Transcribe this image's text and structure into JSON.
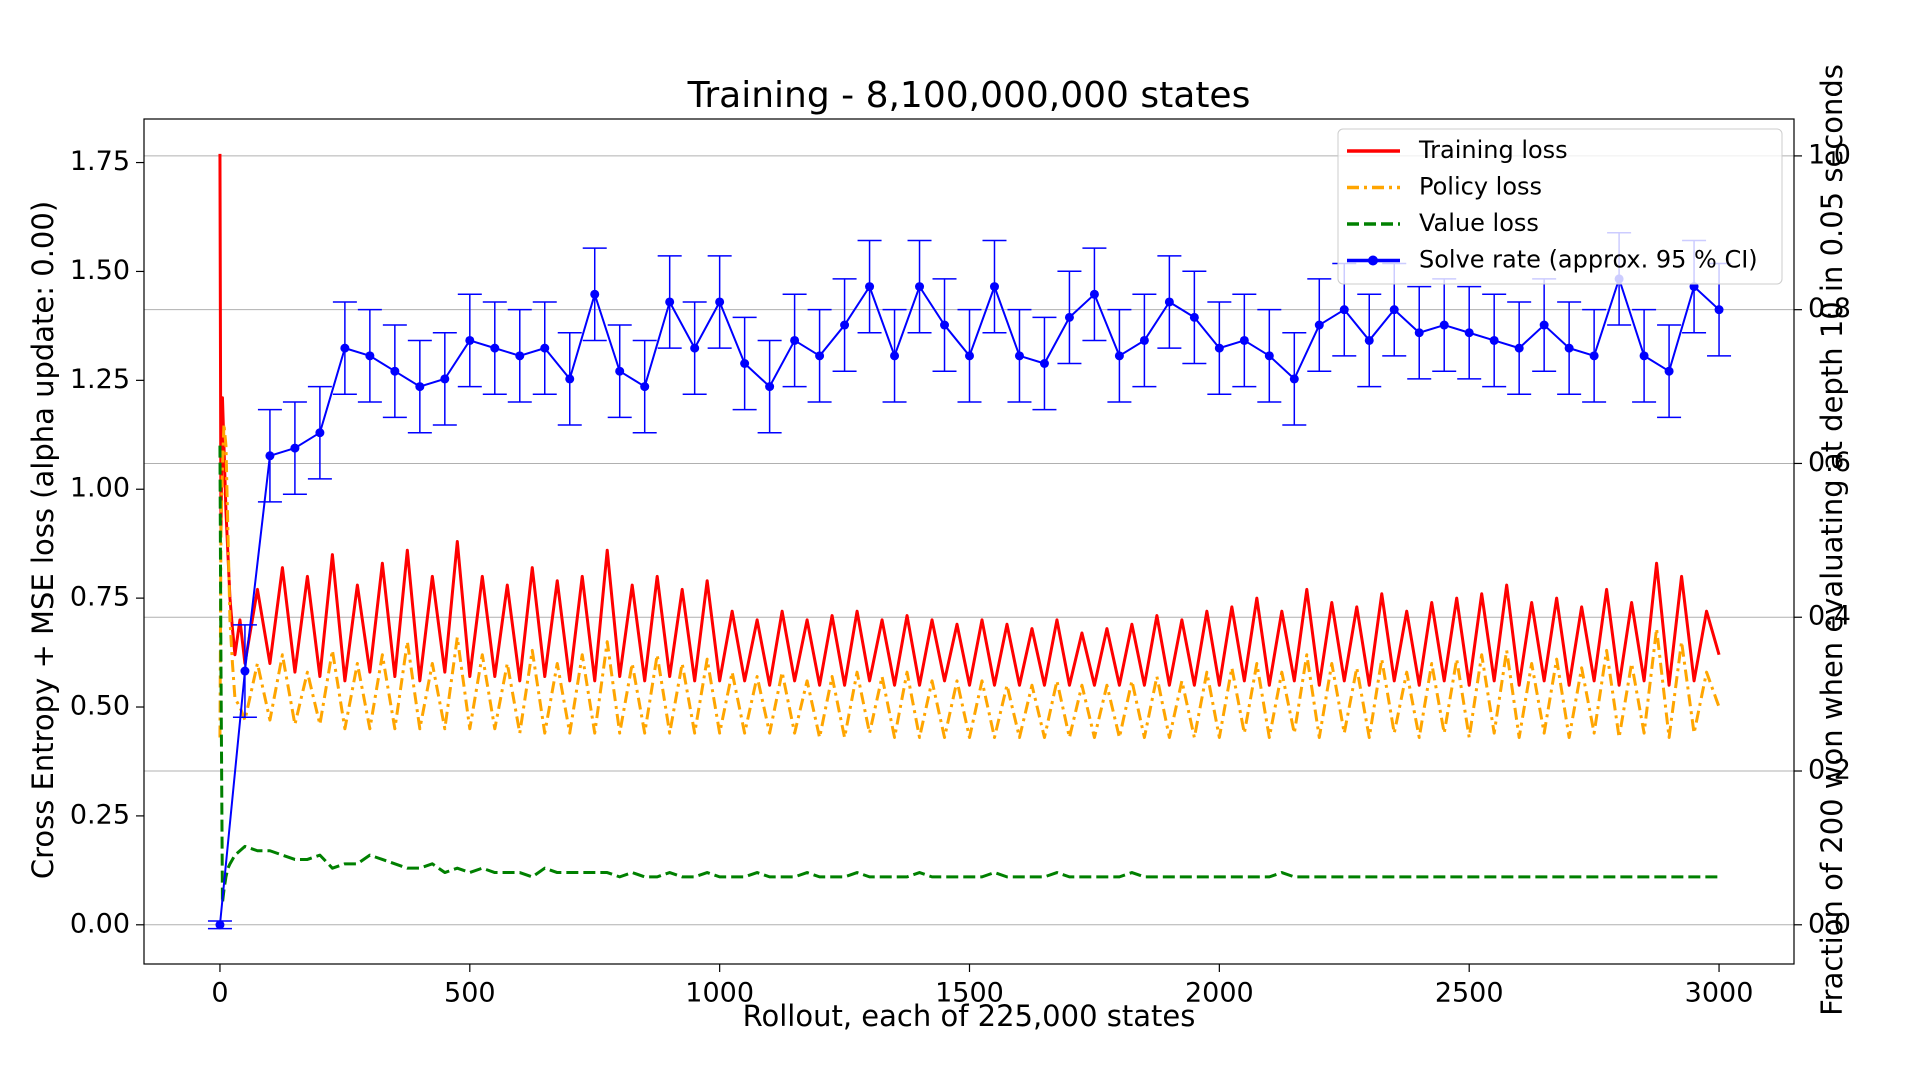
{
  "chart_data": {
    "type": "line",
    "title": "Training - 8,100,000,000 states",
    "xlabel": "Rollout, each of 225,000 states",
    "ylabel": "Cross Entropy + MSE loss (alpha update: 0.00)",
    "y2label": "Fraction of 200 won when evaluating at depth 10 in 0.05 seconds",
    "xlim": [
      -152,
      3150
    ],
    "xticks": [
      0,
      500,
      1000,
      1500,
      2000,
      2500,
      3000
    ],
    "ylim": [
      -0.09,
      1.85
    ],
    "yticks": [
      {
        "value": 0,
        "label": "0.00"
      },
      0.25,
      {
        "value": 0.5,
        "label": "0.50"
      },
      0.75,
      {
        "value": 1,
        "label": "1.00"
      },
      1.25,
      {
        "value": 1.5,
        "label": "1.50"
      },
      1.75
    ],
    "y2lim": [
      -0.051,
      1.048
    ],
    "y2ticks": [
      {
        "value": 0,
        "label": "0.0"
      },
      0.2,
      0.4,
      0.6,
      0.8,
      {
        "value": 1,
        "label": "1.0"
      }
    ],
    "grid": "y2",
    "legend": "upper right",
    "left_color": "#ff0000",
    "right_color": "#0000ff",
    "x": [
      0,
      2,
      5,
      8,
      12,
      16,
      20,
      25,
      30,
      40,
      50,
      75,
      100,
      125,
      150,
      175,
      200,
      225,
      250,
      275,
      300,
      325,
      350,
      375,
      400,
      425,
      450,
      475,
      500,
      525,
      550,
      575,
      600,
      625,
      650,
      675,
      700,
      725,
      750,
      775,
      800,
      825,
      850,
      875,
      900,
      925,
      950,
      975,
      1000,
      1025,
      1050,
      1075,
      1100,
      1125,
      1150,
      1175,
      1200,
      1225,
      1250,
      1275,
      1300,
      1325,
      1350,
      1375,
      1400,
      1425,
      1450,
      1475,
      1500,
      1525,
      1550,
      1575,
      1600,
      1625,
      1650,
      1675,
      1700,
      1725,
      1750,
      1775,
      1800,
      1825,
      1850,
      1875,
      1900,
      1925,
      1950,
      1975,
      2000,
      2025,
      2050,
      2075,
      2100,
      2125,
      2150,
      2175,
      2200,
      2225,
      2250,
      2275,
      2300,
      2325,
      2350,
      2375,
      2400,
      2425,
      2450,
      2475,
      2500,
      2525,
      2550,
      2575,
      2600,
      2625,
      2650,
      2675,
      2700,
      2725,
      2750,
      2775,
      2800,
      2825,
      2850,
      2875,
      2900,
      2925,
      2950,
      2975,
      3000
    ],
    "series": [
      {
        "name": "Training loss",
        "color": "#ff0000",
        "dash": "solid",
        "values": [
          1.77,
          0.9,
          1.21,
          1.1,
          0.95,
          0.85,
          0.75,
          0.68,
          0.62,
          0.7,
          0.6,
          0.77,
          0.6,
          0.82,
          0.58,
          0.8,
          0.57,
          0.85,
          0.56,
          0.78,
          0.58,
          0.83,
          0.57,
          0.86,
          0.56,
          0.8,
          0.58,
          0.88,
          0.57,
          0.8,
          0.57,
          0.78,
          0.56,
          0.82,
          0.57,
          0.79,
          0.56,
          0.8,
          0.56,
          0.86,
          0.57,
          0.78,
          0.56,
          0.8,
          0.57,
          0.77,
          0.56,
          0.79,
          0.56,
          0.72,
          0.56,
          0.7,
          0.55,
          0.72,
          0.56,
          0.7,
          0.55,
          0.71,
          0.55,
          0.72,
          0.56,
          0.7,
          0.55,
          0.71,
          0.55,
          0.7,
          0.56,
          0.69,
          0.55,
          0.7,
          0.55,
          0.69,
          0.55,
          0.68,
          0.55,
          0.7,
          0.55,
          0.67,
          0.55,
          0.68,
          0.55,
          0.69,
          0.55,
          0.71,
          0.55,
          0.7,
          0.55,
          0.72,
          0.55,
          0.73,
          0.56,
          0.75,
          0.55,
          0.72,
          0.56,
          0.77,
          0.55,
          0.74,
          0.56,
          0.73,
          0.55,
          0.76,
          0.56,
          0.72,
          0.55,
          0.74,
          0.56,
          0.75,
          0.55,
          0.76,
          0.56,
          0.78,
          0.55,
          0.74,
          0.56,
          0.75,
          0.55,
          0.73,
          0.56,
          0.77,
          0.55,
          0.74,
          0.56,
          0.83,
          0.55,
          0.8,
          0.56,
          0.72,
          0.62
        ]
      },
      {
        "name": "Policy loss",
        "color": "#ffa500",
        "dash": "dashdot",
        "values": [
          0.43,
          0.9,
          1.05,
          1.15,
          1.1,
          0.9,
          0.7,
          0.6,
          0.52,
          0.5,
          0.47,
          0.6,
          0.47,
          0.62,
          0.46,
          0.58,
          0.46,
          0.63,
          0.45,
          0.6,
          0.45,
          0.62,
          0.45,
          0.65,
          0.45,
          0.6,
          0.45,
          0.66,
          0.45,
          0.62,
          0.45,
          0.6,
          0.44,
          0.63,
          0.44,
          0.6,
          0.44,
          0.62,
          0.44,
          0.65,
          0.44,
          0.6,
          0.44,
          0.62,
          0.44,
          0.6,
          0.44,
          0.61,
          0.44,
          0.58,
          0.44,
          0.57,
          0.44,
          0.58,
          0.44,
          0.56,
          0.43,
          0.57,
          0.43,
          0.58,
          0.44,
          0.57,
          0.43,
          0.58,
          0.43,
          0.56,
          0.43,
          0.56,
          0.43,
          0.56,
          0.43,
          0.55,
          0.43,
          0.55,
          0.43,
          0.56,
          0.43,
          0.55,
          0.43,
          0.55,
          0.43,
          0.56,
          0.43,
          0.57,
          0.43,
          0.56,
          0.43,
          0.58,
          0.43,
          0.59,
          0.44,
          0.6,
          0.43,
          0.58,
          0.44,
          0.62,
          0.43,
          0.6,
          0.44,
          0.59,
          0.43,
          0.61,
          0.44,
          0.58,
          0.43,
          0.6,
          0.44,
          0.61,
          0.43,
          0.62,
          0.44,
          0.63,
          0.43,
          0.6,
          0.44,
          0.61,
          0.43,
          0.59,
          0.44,
          0.63,
          0.43,
          0.6,
          0.44,
          0.68,
          0.43,
          0.65,
          0.44,
          0.58,
          0.5
        ]
      },
      {
        "name": "Value loss",
        "color": "#008000",
        "dash": "dashed",
        "values": [
          1.1,
          0.6,
          0.05,
          0.08,
          0.11,
          0.13,
          0.14,
          0.15,
          0.16,
          0.17,
          0.18,
          0.17,
          0.17,
          0.16,
          0.15,
          0.15,
          0.16,
          0.13,
          0.14,
          0.14,
          0.16,
          0.15,
          0.14,
          0.13,
          0.13,
          0.14,
          0.12,
          0.13,
          0.12,
          0.13,
          0.12,
          0.12,
          0.12,
          0.11,
          0.13,
          0.12,
          0.12,
          0.12,
          0.12,
          0.12,
          0.11,
          0.12,
          0.11,
          0.11,
          0.12,
          0.11,
          0.11,
          0.12,
          0.11,
          0.11,
          0.11,
          0.12,
          0.11,
          0.11,
          0.11,
          0.12,
          0.11,
          0.11,
          0.11,
          0.12,
          0.11,
          0.11,
          0.11,
          0.11,
          0.12,
          0.11,
          0.11,
          0.11,
          0.11,
          0.11,
          0.12,
          0.11,
          0.11,
          0.11,
          0.11,
          0.12,
          0.11,
          0.11,
          0.11,
          0.11,
          0.11,
          0.12,
          0.11,
          0.11,
          0.11,
          0.11,
          0.11,
          0.11,
          0.11,
          0.11,
          0.11,
          0.11,
          0.11,
          0.12,
          0.11,
          0.11,
          0.11,
          0.11,
          0.11,
          0.11,
          0.11,
          0.11,
          0.11,
          0.11,
          0.11,
          0.11,
          0.11,
          0.11,
          0.11,
          0.11,
          0.11,
          0.11,
          0.11,
          0.11,
          0.11,
          0.11,
          0.11,
          0.11,
          0.11,
          0.11,
          0.11,
          0.11,
          0.11,
          0.11,
          0.11,
          0.11,
          0.11,
          0.11,
          0.11
        ]
      },
      {
        "name": "Solve rate (approx. 95 % CI)",
        "color": "#0000ff",
        "dash": "solid",
        "axis": "y2",
        "markers": true,
        "x": [
          0,
          50,
          100,
          150,
          200,
          250,
          300,
          350,
          400,
          450,
          500,
          550,
          600,
          650,
          700,
          750,
          800,
          850,
          900,
          950,
          1000,
          1050,
          1100,
          1150,
          1200,
          1250,
          1300,
          1350,
          1400,
          1450,
          1500,
          1550,
          1600,
          1650,
          1700,
          1750,
          1800,
          1850,
          1900,
          1950,
          2000,
          2050,
          2100,
          2150,
          2200,
          2250,
          2300,
          2350,
          2400,
          2450,
          2500,
          2550,
          2600,
          2650,
          2700,
          2750,
          2800,
          2850,
          2900,
          2950,
          3000
        ],
        "values": [
          0,
          0.33,
          0.61,
          0.62,
          0.64,
          0.75,
          0.74,
          0.72,
          0.7,
          0.71,
          0.76,
          0.75,
          0.74,
          0.75,
          0.71,
          0.82,
          0.72,
          0.7,
          0.81,
          0.75,
          0.81,
          0.73,
          0.7,
          0.76,
          0.74,
          0.78,
          0.83,
          0.74,
          0.83,
          0.78,
          0.74,
          0.83,
          0.74,
          0.73,
          0.79,
          0.82,
          0.74,
          0.76,
          0.81,
          0.79,
          0.75,
          0.76,
          0.74,
          0.71,
          0.78,
          0.8,
          0.76,
          0.8,
          0.77,
          0.78,
          0.77,
          0.76,
          0.75,
          0.78,
          0.75,
          0.74,
          0.84,
          0.74,
          0.72,
          0.83,
          0.8
        ],
        "errors": [
          0.005,
          0.06,
          0.06,
          0.06,
          0.06,
          0.06,
          0.06,
          0.06,
          0.06,
          0.06,
          0.06,
          0.06,
          0.06,
          0.06,
          0.06,
          0.06,
          0.06,
          0.06,
          0.06,
          0.06,
          0.06,
          0.06,
          0.06,
          0.06,
          0.06,
          0.06,
          0.06,
          0.06,
          0.06,
          0.06,
          0.06,
          0.06,
          0.06,
          0.06,
          0.06,
          0.06,
          0.06,
          0.06,
          0.06,
          0.06,
          0.06,
          0.06,
          0.06,
          0.06,
          0.06,
          0.06,
          0.06,
          0.06,
          0.06,
          0.06,
          0.06,
          0.06,
          0.06,
          0.06,
          0.06,
          0.06,
          0.06,
          0.06,
          0.06,
          0.06,
          0.06
        ]
      }
    ]
  }
}
